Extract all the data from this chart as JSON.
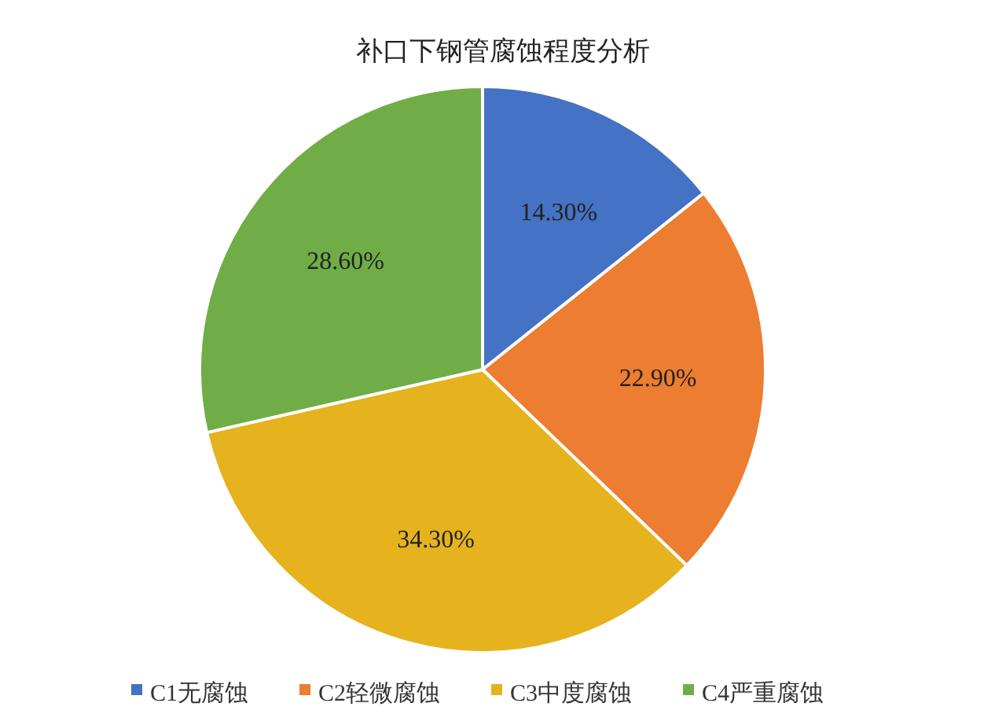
{
  "chart_data": {
    "type": "pie",
    "title": "补口下钢管腐蚀程度分析",
    "categories": [
      "C1无腐蚀",
      "C2轻微腐蚀",
      "C3中度腐蚀",
      "C4严重腐蚀"
    ],
    "values": [
      14.3,
      22.9,
      34.3,
      28.6
    ],
    "value_labels": [
      "14.30%",
      "22.90%",
      "34.30%",
      "28.60%"
    ],
    "colors": [
      "#4472c4",
      "#ed7d31",
      "#e6b21e",
      "#70ad47"
    ],
    "legend": "bottom"
  }
}
